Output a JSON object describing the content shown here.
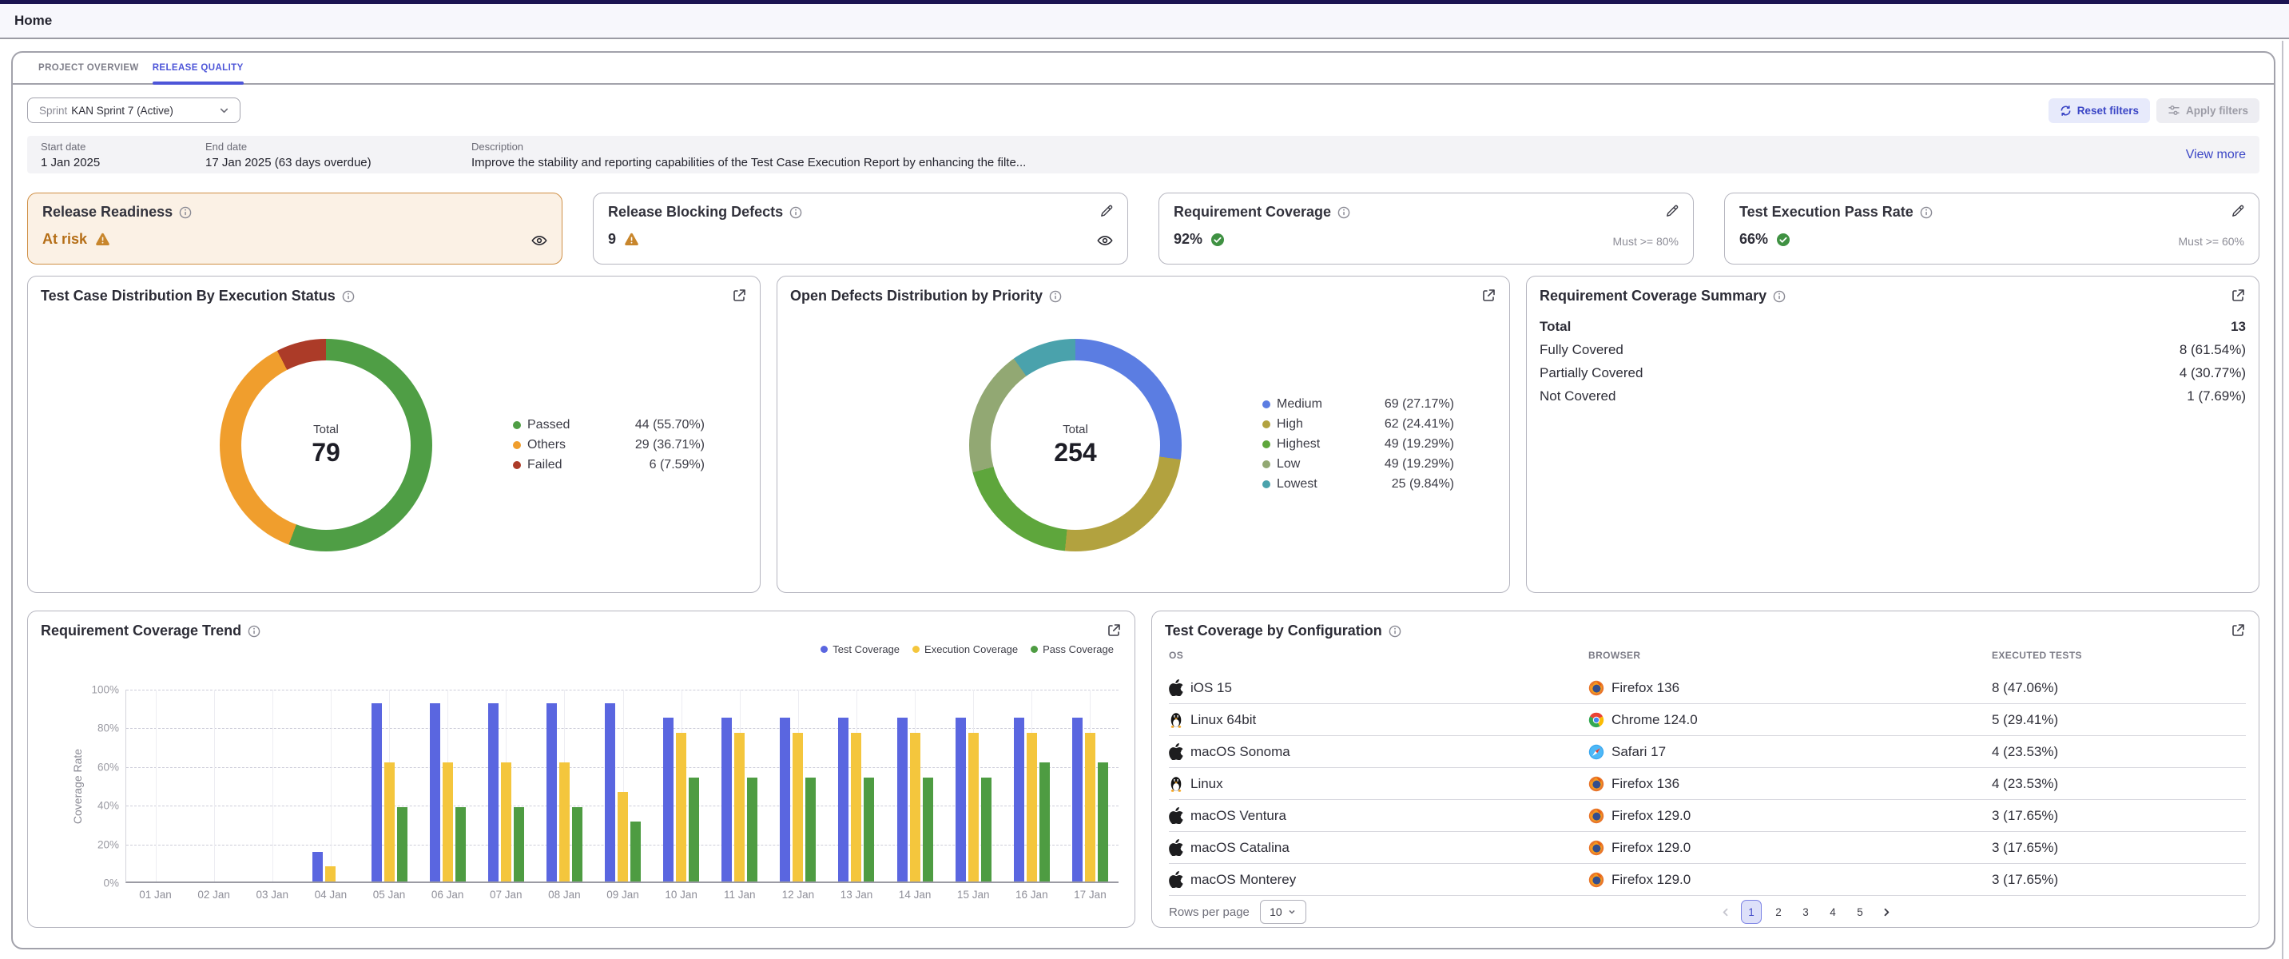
{
  "header": {
    "breadcrumb": "Home"
  },
  "tabs": [
    {
      "label": "PROJECT OVERVIEW",
      "active": false
    },
    {
      "label": "RELEASE QUALITY",
      "active": true
    }
  ],
  "filters": {
    "sprint_prefix": "Sprint",
    "sprint_value": "KAN Sprint 7 (Active)",
    "reset_label": "Reset filters",
    "apply_label": "Apply filters"
  },
  "sprint_info": {
    "start_label": "Start date",
    "start_value": "1 Jan 2025",
    "end_label": "End date",
    "end_value": "17 Jan 2025 (63 days overdue)",
    "desc_label": "Description",
    "desc_value": "Improve the stability and reporting capabilities of the Test Case Execution Report by enhancing the filte...",
    "view_more": "View more"
  },
  "metrics": {
    "release_readiness": {
      "title": "Release Readiness",
      "value": "At risk",
      "status_color": "#b56e16",
      "card_bg": "#fbf1e5",
      "card_border": "#cf8f45"
    },
    "release_blocking_defects": {
      "title": "Release Blocking Defects",
      "value": "9"
    },
    "requirement_coverage": {
      "title": "Requirement Coverage",
      "value": "92%",
      "threshold": "Must >= 80%"
    },
    "test_execution_pass_rate": {
      "title": "Test Execution Pass Rate",
      "value": "66%",
      "threshold": "Must >= 60%"
    }
  },
  "chart_data": [
    {
      "type": "pie",
      "title": "Test Case Distribution By Execution Status",
      "center_label": "Total",
      "total": 79,
      "segments": [
        {
          "label": "Passed",
          "value": 44,
          "pct": "55.70%",
          "color": "#4f9e45"
        },
        {
          "label": "Others",
          "value": 29,
          "pct": "36.71%",
          "color": "#f09e2d"
        },
        {
          "label": "Failed",
          "value": 6,
          "pct": "7.59%",
          "color": "#ac3b28"
        }
      ]
    },
    {
      "type": "pie",
      "title": "Open Defects Distribution by Priority",
      "center_label": "Total",
      "total": 254,
      "segments": [
        {
          "label": "Medium",
          "value": 69,
          "pct": "27.17%",
          "color": "#5b7de2"
        },
        {
          "label": "High",
          "value": 62,
          "pct": "24.41%",
          "color": "#b2a23f"
        },
        {
          "label": "Highest",
          "value": 49,
          "pct": "19.29%",
          "color": "#5ea63c"
        },
        {
          "label": "Low",
          "value": 49,
          "pct": "19.29%",
          "color": "#92a873"
        },
        {
          "label": "Lowest",
          "value": 25,
          "pct": "9.84%",
          "color": "#4aa2ac"
        }
      ]
    },
    {
      "type": "bar",
      "title": "Requirement Coverage Trend",
      "ylabel": "Coverage Rate",
      "ylim": [
        0,
        100
      ],
      "yticks": [
        "0%",
        "20%",
        "40%",
        "60%",
        "80%",
        "100%"
      ],
      "categories": [
        "01 Jan",
        "02 Jan",
        "03 Jan",
        "04 Jan",
        "05 Jan",
        "06 Jan",
        "07 Jan",
        "08 Jan",
        "09 Jan",
        "10 Jan",
        "11 Jan",
        "12 Jan",
        "13 Jan",
        "14 Jan",
        "15 Jan",
        "16 Jan",
        "17 Jan"
      ],
      "series": [
        {
          "name": "Test Coverage",
          "color": "#5a66e0",
          "values": [
            0,
            0,
            0,
            15.4,
            92.3,
            92.3,
            92.3,
            92.3,
            92.3,
            84.6,
            84.6,
            84.6,
            84.6,
            84.6,
            84.6,
            84.6,
            84.6
          ]
        },
        {
          "name": "Execution Coverage",
          "color": "#f4c63d",
          "values": [
            0,
            0,
            0,
            7.7,
            61.5,
            61.5,
            61.5,
            61.5,
            46.2,
            76.9,
            76.9,
            76.9,
            76.9,
            76.9,
            76.9,
            76.9,
            76.9
          ]
        },
        {
          "name": "Pass Coverage",
          "color": "#4e9c42",
          "values": [
            0,
            0,
            0,
            0,
            38.5,
            38.5,
            38.5,
            38.5,
            30.8,
            53.8,
            53.8,
            53.8,
            53.8,
            53.8,
            53.8,
            61.5,
            61.5
          ]
        }
      ],
      "legend_position": "top-right",
      "grid": true
    }
  ],
  "coverage_summary": {
    "title": "Requirement Coverage Summary",
    "rows": [
      {
        "label": "Total",
        "value": "13",
        "bold": true
      },
      {
        "label": "Fully Covered",
        "value": "8 (61.54%)",
        "bold": false
      },
      {
        "label": "Partially Covered",
        "value": "4 (30.77%)",
        "bold": false
      },
      {
        "label": "Not Covered",
        "value": "1 (7.69%)",
        "bold": false
      }
    ]
  },
  "config_table": {
    "title": "Test Coverage by Configuration",
    "columns": [
      "OS",
      "BROWSER",
      "EXECUTED TESTS"
    ],
    "rows": [
      {
        "os": "iOS 15",
        "os_icon": "apple",
        "browser": "Firefox 136",
        "browser_icon": "firefox",
        "tests": "8  (47.06%)"
      },
      {
        "os": "Linux 64bit",
        "os_icon": "linux",
        "browser": "Chrome 124.0",
        "browser_icon": "chrome",
        "tests": "5  (29.41%)"
      },
      {
        "os": "macOS Sonoma",
        "os_icon": "apple",
        "browser": "Safari 17",
        "browser_icon": "safari",
        "tests": "4  (23.53%)"
      },
      {
        "os": "Linux",
        "os_icon": "linux",
        "browser": "Firefox 136",
        "browser_icon": "firefox",
        "tests": "4  (23.53%)"
      },
      {
        "os": "macOS Ventura",
        "os_icon": "apple",
        "browser": "Firefox 129.0",
        "browser_icon": "firefox",
        "tests": "3  (17.65%)"
      },
      {
        "os": "macOS Catalina",
        "os_icon": "apple",
        "browser": "Firefox 129.0",
        "browser_icon": "firefox",
        "tests": "3  (17.65%)"
      },
      {
        "os": "macOS Monterey",
        "os_icon": "apple",
        "browser": "Firefox 129.0",
        "browser_icon": "firefox",
        "tests": "3  (17.65%)"
      }
    ],
    "footer": {
      "rows_per_page_label": "Rows per page",
      "rows_per_page_value": "10",
      "pages": [
        "1",
        "2",
        "3",
        "4",
        "5"
      ],
      "active_page": "1"
    }
  }
}
